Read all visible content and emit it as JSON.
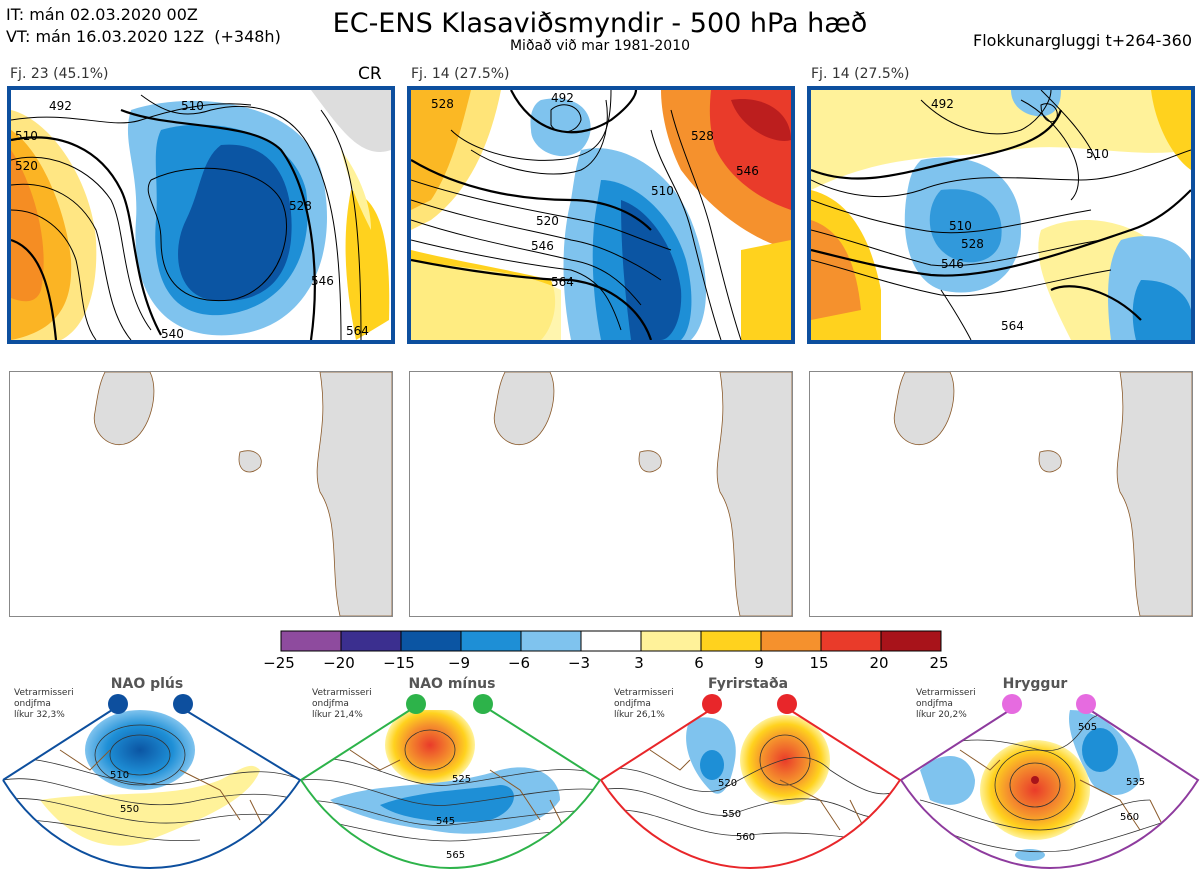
{
  "header": {
    "it_line": "IT: mán 02.03.2020 00Z",
    "vt_line": "VT: mán 16.03.2020 12Z  (+348h)",
    "title": "EC-ENS Klasaviðsmyndir - 500 hPa hæð",
    "subtitle": "Miðað við mar 1981-2010",
    "window": "Flokkunargluggi t+264-360"
  },
  "clusters": [
    {
      "label": "Fj. 23 (45.1%)",
      "tag": "CR",
      "contours": [
        "510",
        "520",
        "528",
        "546",
        "564",
        "540",
        "492"
      ]
    },
    {
      "label": "Fj. 14 (27.5%)",
      "tag": "",
      "contours": [
        "528",
        "492",
        "510",
        "520",
        "546",
        "564",
        "528",
        "546"
      ]
    },
    {
      "label": "Fj. 14 (27.5%)",
      "tag": "",
      "contours": [
        "492",
        "510",
        "528",
        "546",
        "564",
        "510"
      ]
    }
  ],
  "colorbar": {
    "colors": [
      "#8e4b9e",
      "#3b2f8f",
      "#0b55a3",
      "#1e8fd6",
      "#7fc3ee",
      "#ffffff",
      "#fff29a",
      "#ffd21e",
      "#f5912d",
      "#e93b2a",
      "#a8131a"
    ],
    "ticks": [
      "−25",
      "−20",
      "−15",
      "−9",
      "−6",
      "−3",
      "3",
      "6",
      "9",
      "15",
      "20",
      "25"
    ]
  },
  "regimes": [
    {
      "name": "NAO plús",
      "freq_line1": "Vetrarmisseri",
      "freq_line2": "ondjfma",
      "freq_line3": "líkur 32,3%",
      "dot_color": "#0d4f9e",
      "frame_color": "#0d4f9e",
      "contours": [
        "510",
        "550"
      ]
    },
    {
      "name": "NAO mínus",
      "freq_line1": "Vetrarmisseri",
      "freq_line2": "ondjfma",
      "freq_line3": "líkur 21,4%",
      "dot_color": "#2db34a",
      "frame_color": "#2db34a",
      "contours": [
        "525",
        "545",
        "565"
      ]
    },
    {
      "name": "Fyrirstaða",
      "freq_line1": "Vetrarmisseri",
      "freq_line2": "ondjfma",
      "freq_line3": "líkur 26,1%",
      "dot_color": "#e8262a",
      "frame_color": "#e8262a",
      "contours": [
        "520",
        "550",
        "560"
      ]
    },
    {
      "name": "Hryggur",
      "freq_line1": "Vetrarmisseri",
      "freq_line2": "ondjfma",
      "freq_line3": "líkur 20,2%",
      "dot_color": "#e66be0",
      "frame_color": "#8e3b9e",
      "contours": [
        "505",
        "535",
        "560"
      ]
    }
  ]
}
